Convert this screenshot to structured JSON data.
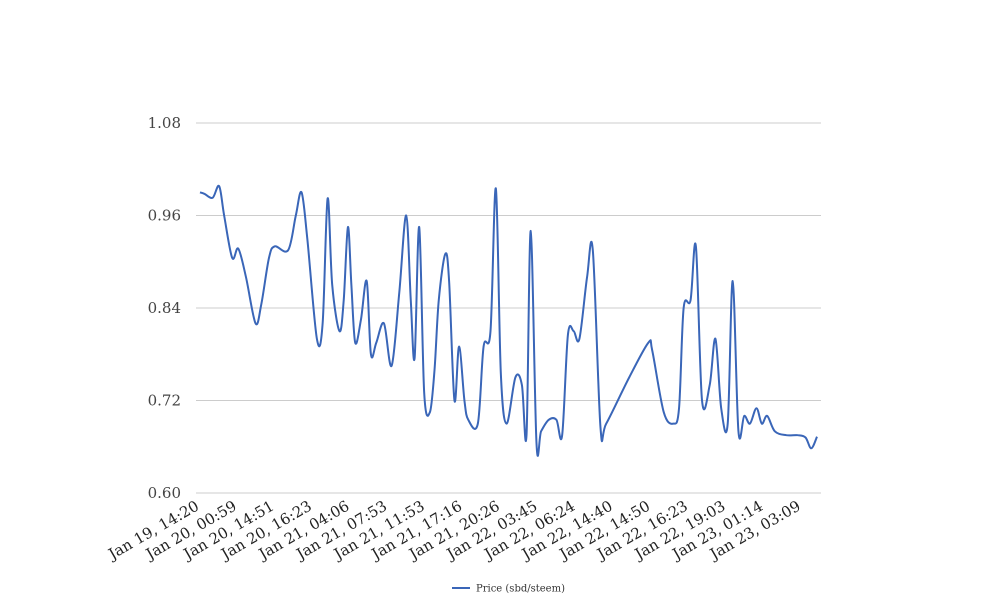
{
  "chart_data": {
    "type": "line",
    "title": "",
    "xlabel": "",
    "ylabel": "",
    "ylim": [
      0.6,
      1.08
    ],
    "yticks": [
      "0.60",
      "0.72",
      "0.84",
      "0.96",
      "1.08"
    ],
    "xticks": [
      "Jan 19, 14:20",
      "Jan 20, 00:59",
      "Jan 20, 14:51",
      "Jan 20, 16:23",
      "Jan 21, 04:06",
      "Jan 21, 07:53",
      "Jan 21, 11:53",
      "Jan 21, 17:16",
      "Jan 21, 20:26",
      "Jan 22, 03:45",
      "Jan 22, 06:24",
      "Jan 22, 14:40",
      "Jan 22, 14:50",
      "Jan 22, 16:23",
      "Jan 22, 19:03",
      "Jan 23, 01:14",
      "Jan 23, 03:09"
    ],
    "grid": true,
    "legend_position": "bottom",
    "color": "#3a66b8",
    "series": [
      {
        "name": "Price (sbd/steem)",
        "values": [
          [
            0.0,
            0.99
          ],
          [
            1.2,
            0.988
          ],
          [
            3.3,
            0.983
          ],
          [
            5.0,
            0.998
          ],
          [
            6.3,
            0.96
          ],
          [
            8.4,
            0.905
          ],
          [
            10.0,
            0.917
          ],
          [
            12.0,
            0.88
          ],
          [
            14.5,
            0.82
          ],
          [
            16.0,
            0.845
          ],
          [
            18.0,
            0.905
          ],
          [
            19.5,
            0.92
          ],
          [
            23.0,
            0.915
          ],
          [
            25.0,
            0.96
          ],
          [
            26.5,
            0.99
          ],
          [
            28.0,
            0.93
          ],
          [
            30.5,
            0.8
          ],
          [
            32.0,
            0.82
          ],
          [
            33.3,
            0.982
          ],
          [
            34.5,
            0.87
          ],
          [
            36.4,
            0.81
          ],
          [
            37.5,
            0.85
          ],
          [
            38.6,
            0.945
          ],
          [
            39.5,
            0.87
          ],
          [
            40.5,
            0.795
          ],
          [
            42.0,
            0.825
          ],
          [
            43.5,
            0.875
          ],
          [
            44.6,
            0.78
          ],
          [
            46.0,
            0.795
          ],
          [
            48.0,
            0.82
          ],
          [
            50.0,
            0.765
          ],
          [
            52.0,
            0.86
          ],
          [
            53.8,
            0.96
          ],
          [
            55.0,
            0.85
          ],
          [
            56.0,
            0.775
          ],
          [
            57.2,
            0.945
          ],
          [
            58.5,
            0.73
          ],
          [
            60.0,
            0.705
          ],
          [
            61.2,
            0.76
          ],
          [
            62.3,
            0.85
          ],
          [
            64.0,
            0.91
          ],
          [
            65.0,
            0.875
          ],
          [
            66.4,
            0.72
          ],
          [
            67.6,
            0.79
          ],
          [
            69.0,
            0.72
          ],
          [
            70.0,
            0.695
          ],
          [
            72.5,
            0.69
          ],
          [
            74.0,
            0.79
          ],
          [
            75.8,
            0.81
          ],
          [
            77.2,
            0.995
          ],
          [
            78.5,
            0.755
          ],
          [
            80.0,
            0.69
          ],
          [
            82.3,
            0.75
          ],
          [
            84.0,
            0.74
          ],
          [
            85.2,
            0.675
          ],
          [
            86.3,
            0.94
          ],
          [
            87.8,
            0.665
          ],
          [
            89.0,
            0.68
          ],
          [
            91.0,
            0.695
          ],
          [
            93.0,
            0.695
          ],
          [
            94.5,
            0.675
          ],
          [
            96.0,
            0.805
          ],
          [
            97.5,
            0.81
          ],
          [
            99.0,
            0.8
          ],
          [
            101.0,
            0.88
          ],
          [
            102.5,
            0.915
          ],
          [
            104.5,
            0.685
          ],
          [
            106.0,
            0.69
          ],
          [
            112.0,
            0.75
          ],
          [
            117.0,
            0.795
          ],
          [
            118.0,
            0.785
          ],
          [
            121.0,
            0.705
          ],
          [
            123.5,
            0.69
          ],
          [
            125.0,
            0.71
          ],
          [
            126.2,
            0.84
          ],
          [
            128.0,
            0.85
          ],
          [
            129.4,
            0.92
          ],
          [
            131.0,
            0.72
          ],
          [
            133.0,
            0.74
          ],
          [
            134.5,
            0.8
          ],
          [
            136.0,
            0.71
          ],
          [
            137.7,
            0.69
          ],
          [
            139.0,
            0.875
          ],
          [
            140.5,
            0.68
          ],
          [
            142.0,
            0.7
          ],
          [
            143.5,
            0.69
          ],
          [
            145.2,
            0.71
          ],
          [
            146.6,
            0.69
          ],
          [
            148.0,
            0.7
          ],
          [
            150.0,
            0.68
          ],
          [
            153.0,
            0.675
          ],
          [
            156.0,
            0.675
          ],
          [
            158.0,
            0.672
          ],
          [
            159.5,
            0.658
          ],
          [
            161.0,
            0.673
          ]
        ]
      }
    ]
  }
}
